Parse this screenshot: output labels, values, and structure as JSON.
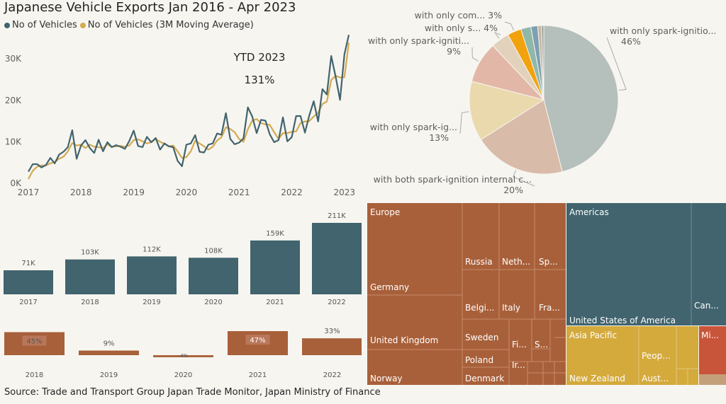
{
  "title": "Japanese Vehicle Exports Jan 2016 - Apr 2023",
  "legend": [
    {
      "label": "No of Vehicles",
      "color": "#41646e"
    },
    {
      "label": "No of Vehicles (3M Moving Average)",
      "color": "#d4aa50"
    }
  ],
  "annotation": {
    "line1": "YTD 2023",
    "line2": "131%"
  },
  "footer": "Source: Trade and Transport Group Japan Trade Monitor, Japan Ministry of Finance",
  "chart_data": [
    {
      "type": "line",
      "y_ticks": [
        "0K",
        "10K",
        "20K",
        "30K"
      ],
      "x_ticks": [
        "2017",
        "2018",
        "2019",
        "2020",
        "2021",
        "2022",
        "2023"
      ],
      "ylim": [
        0,
        36000
      ],
      "grid": false,
      "series": [
        {
          "name": "No of Vehicles",
          "color": "#41646e",
          "values": [
            2800,
            4600,
            4600,
            3800,
            4400,
            6100,
            4800,
            6900,
            7600,
            8700,
            12800,
            5900,
            9100,
            10400,
            8500,
            7300,
            10500,
            7700,
            9900,
            8700,
            9200,
            8800,
            8300,
            10200,
            12700,
            9000,
            8700,
            11200,
            9900,
            10900,
            8100,
            9600,
            8900,
            8700,
            5400,
            4100,
            9300,
            9600,
            11600,
            7600,
            7400,
            9300,
            9600,
            12000,
            11700,
            16900,
            10700,
            9400,
            9800,
            10800,
            18300,
            16100,
            12100,
            15300,
            15100,
            11800,
            9900,
            10400,
            15900,
            10100,
            11100,
            16200,
            16200,
            12200,
            16400,
            19800,
            14900,
            22700,
            21400,
            30700,
            25700,
            20100,
            31100,
            35800
          ]
        },
        {
          "name": "No of Vehicles (3M Moving Average)",
          "color": "#d4aa50",
          "values": [
            1000,
            3000,
            4000,
            4300,
            4300,
            4800,
            5100,
            5900,
            6400,
            7700,
            9700,
            9100,
            9300,
            8500,
            9300,
            8800,
            8700,
            8500,
            9400,
            8800,
            8900,
            9000,
            8800,
            9100,
            10400,
            10600,
            10100,
            9600,
            9900,
            10700,
            10000,
            9500,
            8900,
            9100,
            7700,
            6100,
            6300,
            7700,
            10200,
            9600,
            8900,
            8100,
            8800,
            10300,
            11100,
            13500,
            13100,
            12300,
            10700,
            10000,
            13000,
            15100,
            15500,
            14500,
            14200,
            14100,
            12300,
            10700,
            12100,
            12100,
            12400,
            12500,
            14500,
            14900,
            15000,
            16100,
            17000,
            19100,
            19700,
            24900,
            25900,
            25500,
            25600,
            33900
          ]
        }
      ]
    },
    {
      "type": "bar",
      "categories": [
        "2017",
        "2018",
        "2019",
        "2020",
        "2021",
        "2022"
      ],
      "values": [
        71,
        103,
        112,
        108,
        159,
        211
      ],
      "labels": [
        "71K",
        "103K",
        "112K",
        "108K",
        "159K",
        "211K"
      ],
      "color": "#41646e",
      "ylim": [
        0,
        220
      ]
    },
    {
      "type": "bar",
      "categories": [
        "2018",
        "2019",
        "2020",
        "2021",
        "2022"
      ],
      "values": [
        45,
        9,
        -4,
        47,
        33
      ],
      "labels": [
        "45%",
        "9%",
        "-4%",
        "47%",
        "33%"
      ],
      "color": "#a8603a"
    },
    {
      "type": "pie",
      "slices": [
        {
          "label": "with only spark-ignitio...",
          "pct_label": "46%",
          "value": 46,
          "color": "#b5bfbc"
        },
        {
          "label": "with both spark-ignition internal c...",
          "pct_label": "20%",
          "value": 20,
          "color": "#d9bba9"
        },
        {
          "label": "with only spark-ig...",
          "pct_label": "13%",
          "value": 13,
          "color": "#ead9ad"
        },
        {
          "label": "with only spark-igniti...",
          "pct_label": "9%",
          "value": 9,
          "color": "#e2b7a7"
        },
        {
          "label": "with only s...",
          "pct_label": "4%",
          "value": 4,
          "color": "#e2d2bc"
        },
        {
          "label": "with only com...",
          "pct_label": "3%",
          "value": 3,
          "color": "#f2a20d"
        },
        {
          "label": "",
          "pct_label": "",
          "value": 2.2,
          "color": "#8fb8a8"
        },
        {
          "label": "",
          "pct_label": "",
          "value": 1.5,
          "color": "#7f9fb2"
        },
        {
          "label": "",
          "pct_label": "",
          "value": 0.8,
          "color": "#c3b8a0"
        },
        {
          "label": "",
          "pct_label": "",
          "value": 0.5,
          "color": "#9b9b9b"
        }
      ]
    },
    {
      "type": "treemap",
      "regions": [
        {
          "name": "Europe",
          "color": "#a8603a",
          "items": [
            "Germany",
            "United Kingdom",
            "Norway",
            "Russia",
            "Neth...",
            "Sp...",
            "Belgi...",
            "Italy",
            "Fra...",
            "Sweden",
            "Fi...",
            "S...",
            "Poland",
            "Ir...",
            "Denmark"
          ]
        },
        {
          "name": "Americas",
          "color": "#41646e",
          "items": [
            "United States of America",
            "Can..."
          ]
        },
        {
          "name": "Asia Pacific",
          "color": "#d4aa3c",
          "items": [
            "New Zealand",
            "Peop...",
            "Aust..."
          ]
        },
        {
          "name": "Mi...",
          "color": "#c8543a",
          "items": []
        }
      ]
    }
  ]
}
